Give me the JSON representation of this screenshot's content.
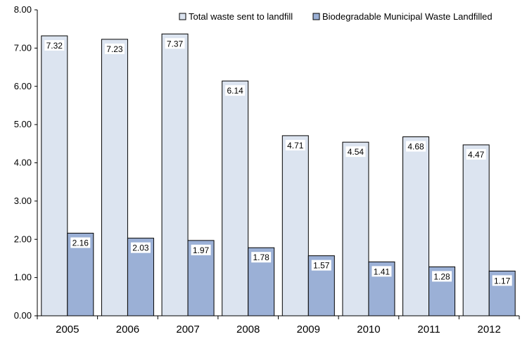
{
  "chart_data": {
    "type": "bar",
    "title": "",
    "xlabel": "",
    "ylabel": "",
    "ylim": [
      0,
      8
    ],
    "yticks": [
      "0.00",
      "1.00",
      "2.00",
      "3.00",
      "4.00",
      "5.00",
      "6.00",
      "7.00",
      "8.00"
    ],
    "categories": [
      "2005",
      "2006",
      "2007",
      "2008",
      "2009",
      "2010",
      "2011",
      "2012"
    ],
    "series": [
      {
        "name": "Total waste sent to landfill",
        "color": "#DCE4F0",
        "values": [
          7.32,
          7.23,
          7.37,
          6.14,
          4.71,
          4.54,
          4.68,
          4.47
        ],
        "labels": [
          "7.32",
          "7.23",
          "7.37",
          "6.14",
          "4.71",
          "4.54",
          "4.68",
          "4.47"
        ]
      },
      {
        "name": "Biodegradable Municipal Waste Landfilled",
        "color": "#9BB0D6",
        "values": [
          2.16,
          2.03,
          1.97,
          1.78,
          1.57,
          1.41,
          1.28,
          1.17
        ],
        "labels": [
          "2.16",
          "2.03",
          "1.97",
          "1.78",
          "1.57",
          "1.41",
          "1.28",
          "1.17"
        ]
      }
    ],
    "legend": "top-right"
  }
}
